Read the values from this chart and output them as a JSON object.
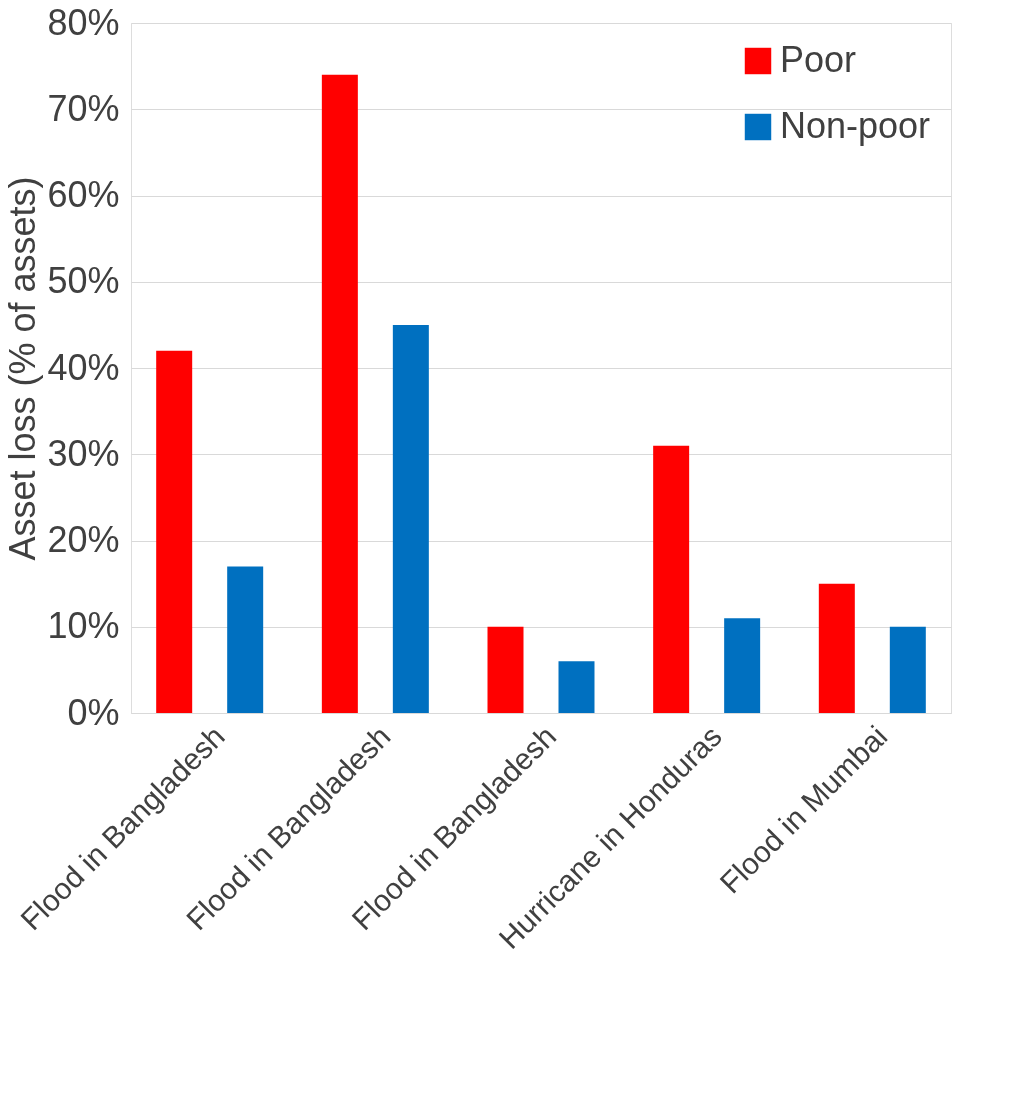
{
  "chart_data": {
    "type": "bar",
    "ylabel": "Asset loss (% of assets)",
    "categories": [
      "Flood in Bangladesh",
      "Flood in Bangladesh",
      "Flood in Bangladesh",
      "Hurricane in Honduras",
      "Flood in Mumbai"
    ],
    "series": [
      {
        "name": "Poor",
        "color": "#ff0000",
        "values": [
          42,
          74,
          10,
          31,
          15
        ]
      },
      {
        "name": "Non-poor",
        "color": "#0070c0",
        "values": [
          17,
          45,
          6,
          11,
          10
        ]
      }
    ],
    "ylim": [
      0,
      80
    ],
    "yticks": [
      {
        "value": 0,
        "label": "0%"
      },
      {
        "value": 10,
        "label": "10%"
      },
      {
        "value": 20,
        "label": "20%"
      },
      {
        "value": 30,
        "label": "30%"
      },
      {
        "value": 40,
        "label": "40%"
      },
      {
        "value": 50,
        "label": "50%"
      },
      {
        "value": 60,
        "label": "60%"
      },
      {
        "value": 70,
        "label": "70%"
      },
      {
        "value": 80,
        "label": "80%"
      }
    ],
    "grid": "y",
    "legend": "top right"
  }
}
